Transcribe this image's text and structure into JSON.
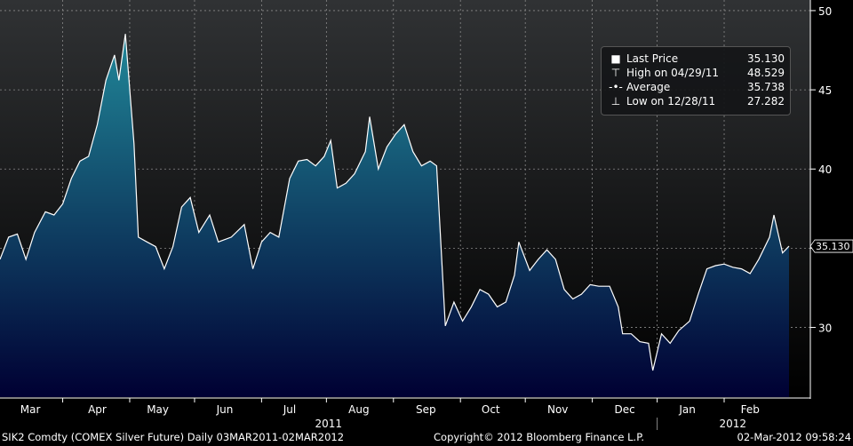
{
  "chart_data": {
    "type": "area",
    "title": "SIK2 Comdty (COMEX Silver Future) Daily 03MAR2011-02MAR2012",
    "xlabel": "",
    "ylabel": "",
    "x_unit": "days since 03MAR2011",
    "x": [
      0,
      4,
      8,
      12,
      16,
      21,
      25,
      29,
      33,
      37,
      41,
      45,
      49,
      53,
      55,
      58,
      62,
      64,
      68,
      72,
      76,
      80,
      84,
      88,
      92,
      97,
      101,
      107,
      113,
      117,
      121,
      125,
      129,
      134,
      138,
      142,
      146,
      150,
      153,
      156,
      160,
      164,
      169,
      171,
      175,
      179,
      183,
      187,
      191,
      195,
      199,
      202,
      206,
      210,
      214,
      218,
      222,
      226,
      230,
      234,
      238,
      240,
      245,
      249,
      253,
      257,
      261,
      265,
      269,
      273,
      277,
      282,
      286,
      288,
      292,
      296,
      300,
      302,
      306,
      310,
      314,
      319,
      323,
      327,
      331,
      335,
      339,
      343,
      347,
      351,
      356,
      358,
      362,
      365
    ],
    "values": [
      34.3,
      35.7,
      35.9,
      34.3,
      36.0,
      37.3,
      37.1,
      37.8,
      39.4,
      40.5,
      40.8,
      42.8,
      45.6,
      47.2,
      45.6,
      48.529,
      41.6,
      35.7,
      35.4,
      35.1,
      33.7,
      35.1,
      37.6,
      38.2,
      36.0,
      37.1,
      35.4,
      35.7,
      36.5,
      33.7,
      35.4,
      36.0,
      35.7,
      39.4,
      40.5,
      40.6,
      40.2,
      40.8,
      41.8,
      38.8,
      39.1,
      39.7,
      41.1,
      43.3,
      40.0,
      41.4,
      42.2,
      42.8,
      41.1,
      40.2,
      40.5,
      40.2,
      30.1,
      31.6,
      30.4,
      31.3,
      32.4,
      32.1,
      31.3,
      31.6,
      33.3,
      35.4,
      33.6,
      34.3,
      34.9,
      34.3,
      32.4,
      31.8,
      32.1,
      32.7,
      32.6,
      32.6,
      31.3,
      29.6,
      29.6,
      29.1,
      29.0,
      27.282,
      29.6,
      29.0,
      29.8,
      30.4,
      32.1,
      33.7,
      33.9,
      34.0,
      33.8,
      33.7,
      33.4,
      34.3,
      35.7,
      37.1,
      34.7,
      35.13
    ],
    "xlim": [
      0,
      365
    ],
    "ylim": [
      25.6,
      50.67
    ],
    "yticks": [
      30,
      35,
      40,
      45,
      50
    ],
    "last_price_tag": "35.130",
    "month_labels": [
      {
        "label": "Mar",
        "day": 14
      },
      {
        "label": "Apr",
        "day": 45
      },
      {
        "label": "May",
        "day": 73
      },
      {
        "label": "Jun",
        "day": 104
      },
      {
        "label": "Jul",
        "day": 134
      },
      {
        "label": "Aug",
        "day": 166
      },
      {
        "label": "Sep",
        "day": 197
      },
      {
        "label": "Oct",
        "day": 227
      },
      {
        "label": "Nov",
        "day": 258
      },
      {
        "label": "Dec",
        "day": 289
      },
      {
        "label": "Jan",
        "day": 318
      },
      {
        "label": "Feb",
        "day": 347
      }
    ],
    "month_ticks": [
      29,
      60,
      90,
      121,
      151,
      182,
      213,
      243,
      274,
      304,
      335
    ],
    "year_labels": [
      {
        "label": "2011",
        "day": 152
      },
      {
        "label": "2012",
        "day": 339
      }
    ],
    "year_separator_day": 304,
    "grid": true,
    "legend_placement": "top-right"
  },
  "legend": {
    "last": {
      "name": "Last Price",
      "value": "35.130"
    },
    "high": {
      "name": "High on 04/29/11",
      "value": "48.529"
    },
    "avg": {
      "name": "Average",
      "value": "35.738"
    },
    "low": {
      "name": "Low on 12/28/11",
      "value": "27.282"
    }
  },
  "footer": {
    "left": "SIK2 Comdty (COMEX Silver Future)  Daily 03MAR2011-02MAR2012",
    "center": "Copyright© 2012 Bloomberg Finance L.P.",
    "right": "02-Mar-2012 09:58:24"
  },
  "colors": {
    "fill_top": "#1f8194",
    "fill_bottom": "#000033",
    "line": "#ffffff"
  }
}
